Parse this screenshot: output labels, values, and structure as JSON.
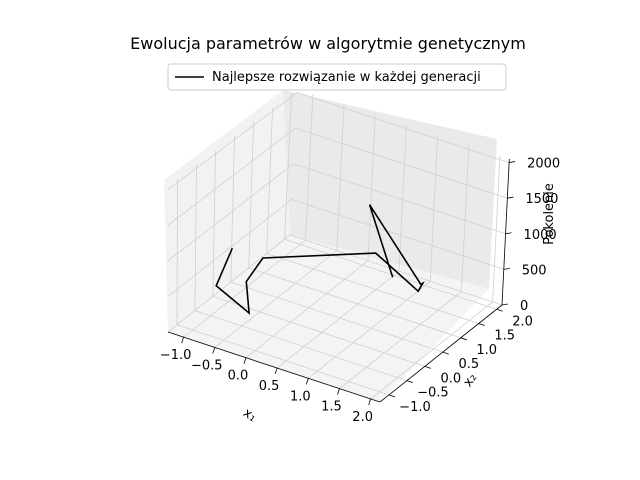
{
  "chart_data": {
    "type": "line3d",
    "title": "Ewolucja parametrów w algorytmie genetycznym",
    "xlabel": "x₁",
    "ylabel": "x₂",
    "zlabel": "Pokolenie",
    "xlim": [
      -1.25,
      2.15
    ],
    "ylim": [
      -1.25,
      2.15
    ],
    "zlim": [
      0,
      2050
    ],
    "xticks": [
      "−1.0",
      "−0.5",
      "0.0",
      "0.5",
      "1.0",
      "1.5",
      "2.0"
    ],
    "yticks": [
      "−1.0",
      "−0.5",
      "0.0",
      "0.5",
      "1.0",
      "1.5",
      "2.0"
    ],
    "zticks": [
      "0",
      "500",
      "1000",
      "1500",
      "2000"
    ],
    "grid": true,
    "legend_position": "top-center",
    "series": [
      {
        "name": "Najlepsze rozwiązanie w każdej generacji",
        "color": "#000000",
        "points": [
          [
            -0.71,
            -0.42,
            1000
          ],
          [
            -0.96,
            -0.42,
            400
          ],
          [
            -0.35,
            -0.56,
            250
          ],
          [
            -0.55,
            -0.3,
            530
          ],
          [
            -0.55,
            0.15,
            680
          ],
          [
            0.7,
            1.1,
            730
          ],
          [
            1.2,
            1.45,
            200
          ],
          [
            1.02,
            1.9,
            80
          ],
          [
            1.22,
            1.48,
            290
          ],
          [
            0.15,
            1.85,
            950
          ],
          [
            0.96,
            1.14,
            450
          ]
        ]
      }
    ]
  }
}
